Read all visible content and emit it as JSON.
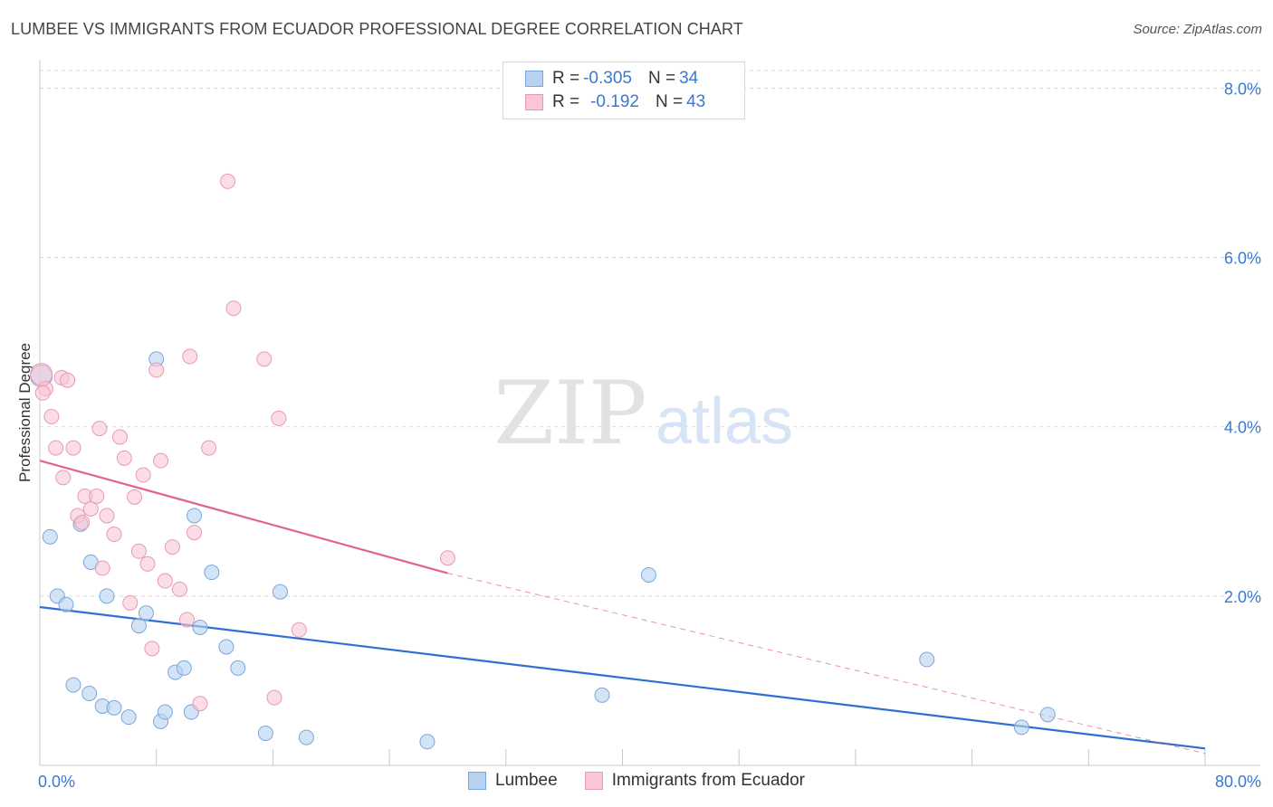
{
  "header": {
    "title": "LUMBEE VS IMMIGRANTS FROM ECUADOR PROFESSIONAL DEGREE CORRELATION CHART",
    "source": "Source: ZipAtlas.com"
  },
  "watermark": {
    "zip": "ZIP",
    "atlas": "atlas"
  },
  "legend_top": {
    "rows": [
      {
        "r_label": "R = ",
        "r_value": "-0.305",
        "n_label": "N = ",
        "n_value": "34"
      },
      {
        "r_label": "R = ",
        "r_value": "-0.192",
        "n_label": "N = ",
        "n_value": "43"
      }
    ]
  },
  "legend_bottom": {
    "items": [
      {
        "label": "Lumbee"
      },
      {
        "label": "Immigrants from Ecuador"
      }
    ]
  },
  "colors": {
    "lumbee_fill": "#b8d2f2",
    "lumbee_stroke": "#7aa6dc",
    "lumbee_line": "#2f6fd0",
    "ecuador_fill": "#f8c6d4",
    "ecuador_stroke": "#e89ab2",
    "ecuador_line": "#e0648c",
    "axis_text": "#3a78d4",
    "grid": "#d9d9d9"
  },
  "chart_data": {
    "type": "scatter",
    "title": "LUMBEE VS IMMIGRANTS FROM ECUADOR PROFESSIONAL DEGREE CORRELATION CHART",
    "xlabel": "",
    "ylabel": "Professional Degree",
    "xlim": [
      0,
      80
    ],
    "ylim": [
      0,
      8.4
    ],
    "x_tick_labels": [
      "0.0%",
      "80.0%"
    ],
    "y_ticks": [
      2,
      4,
      6,
      8
    ],
    "y_tick_labels": [
      "2.0%",
      "4.0%",
      "6.0%",
      "8.0%"
    ],
    "grid": true,
    "legend_placement": "top-center",
    "series": [
      {
        "name": "Lumbee",
        "r": -0.305,
        "n": 34,
        "points": [
          [
            0.1,
            4.6
          ],
          [
            0.7,
            2.7
          ],
          [
            1.2,
            2.0
          ],
          [
            1.8,
            1.9
          ],
          [
            2.3,
            0.95
          ],
          [
            2.8,
            2.85
          ],
          [
            3.4,
            0.85
          ],
          [
            3.5,
            2.4
          ],
          [
            4.3,
            0.7
          ],
          [
            4.6,
            2.0
          ],
          [
            5.1,
            0.68
          ],
          [
            6.1,
            0.57
          ],
          [
            6.8,
            1.65
          ],
          [
            7.3,
            1.8
          ],
          [
            8.0,
            4.8
          ],
          [
            8.3,
            0.52
          ],
          [
            8.6,
            0.63
          ],
          [
            9.3,
            1.1
          ],
          [
            9.9,
            1.15
          ],
          [
            10.4,
            0.63
          ],
          [
            10.6,
            2.95
          ],
          [
            11.0,
            1.63
          ],
          [
            11.8,
            2.28
          ],
          [
            12.8,
            1.4
          ],
          [
            13.6,
            1.15
          ],
          [
            15.5,
            0.38
          ],
          [
            16.5,
            2.05
          ],
          [
            18.3,
            0.33
          ],
          [
            26.6,
            0.28
          ],
          [
            38.6,
            0.83
          ],
          [
            41.8,
            2.25
          ],
          [
            60.9,
            1.25
          ],
          [
            67.4,
            0.45
          ],
          [
            69.2,
            0.6
          ]
        ],
        "trend": {
          "x": [
            0,
            80
          ],
          "y": [
            1.87,
            0.2
          ]
        }
      },
      {
        "name": "Immigrants from Ecuador",
        "r": -0.192,
        "n": 43,
        "points": [
          [
            0.1,
            4.62
          ],
          [
            0.4,
            4.45
          ],
          [
            0.8,
            4.12
          ],
          [
            1.1,
            3.75
          ],
          [
            1.5,
            4.58
          ],
          [
            1.6,
            3.4
          ],
          [
            1.9,
            4.55
          ],
          [
            2.3,
            3.75
          ],
          [
            2.6,
            2.95
          ],
          [
            2.9,
            2.87
          ],
          [
            3.1,
            3.18
          ],
          [
            3.5,
            3.03
          ],
          [
            3.9,
            3.18
          ],
          [
            4.1,
            3.98
          ],
          [
            4.3,
            2.33
          ],
          [
            4.6,
            2.95
          ],
          [
            5.1,
            2.73
          ],
          [
            5.5,
            3.88
          ],
          [
            5.8,
            3.63
          ],
          [
            6.2,
            1.92
          ],
          [
            6.5,
            3.17
          ],
          [
            6.8,
            2.53
          ],
          [
            7.1,
            3.43
          ],
          [
            7.4,
            2.38
          ],
          [
            7.7,
            1.38
          ],
          [
            8.0,
            4.67
          ],
          [
            8.3,
            3.6
          ],
          [
            8.6,
            2.18
          ],
          [
            9.1,
            2.58
          ],
          [
            9.6,
            2.08
          ],
          [
            10.1,
            1.72
          ],
          [
            10.3,
            4.83
          ],
          [
            10.6,
            2.75
          ],
          [
            11.0,
            0.73
          ],
          [
            11.6,
            3.75
          ],
          [
            12.9,
            6.9
          ],
          [
            13.3,
            5.4
          ],
          [
            15.4,
            4.8
          ],
          [
            16.1,
            0.8
          ],
          [
            16.4,
            4.1
          ],
          [
            17.8,
            1.6
          ],
          [
            28.0,
            2.45
          ],
          [
            0.2,
            4.4
          ]
        ],
        "trend": {
          "x": [
            0,
            28.0,
            80
          ],
          "y": [
            3.6,
            2.27,
            0.14
          ]
        }
      }
    ]
  }
}
